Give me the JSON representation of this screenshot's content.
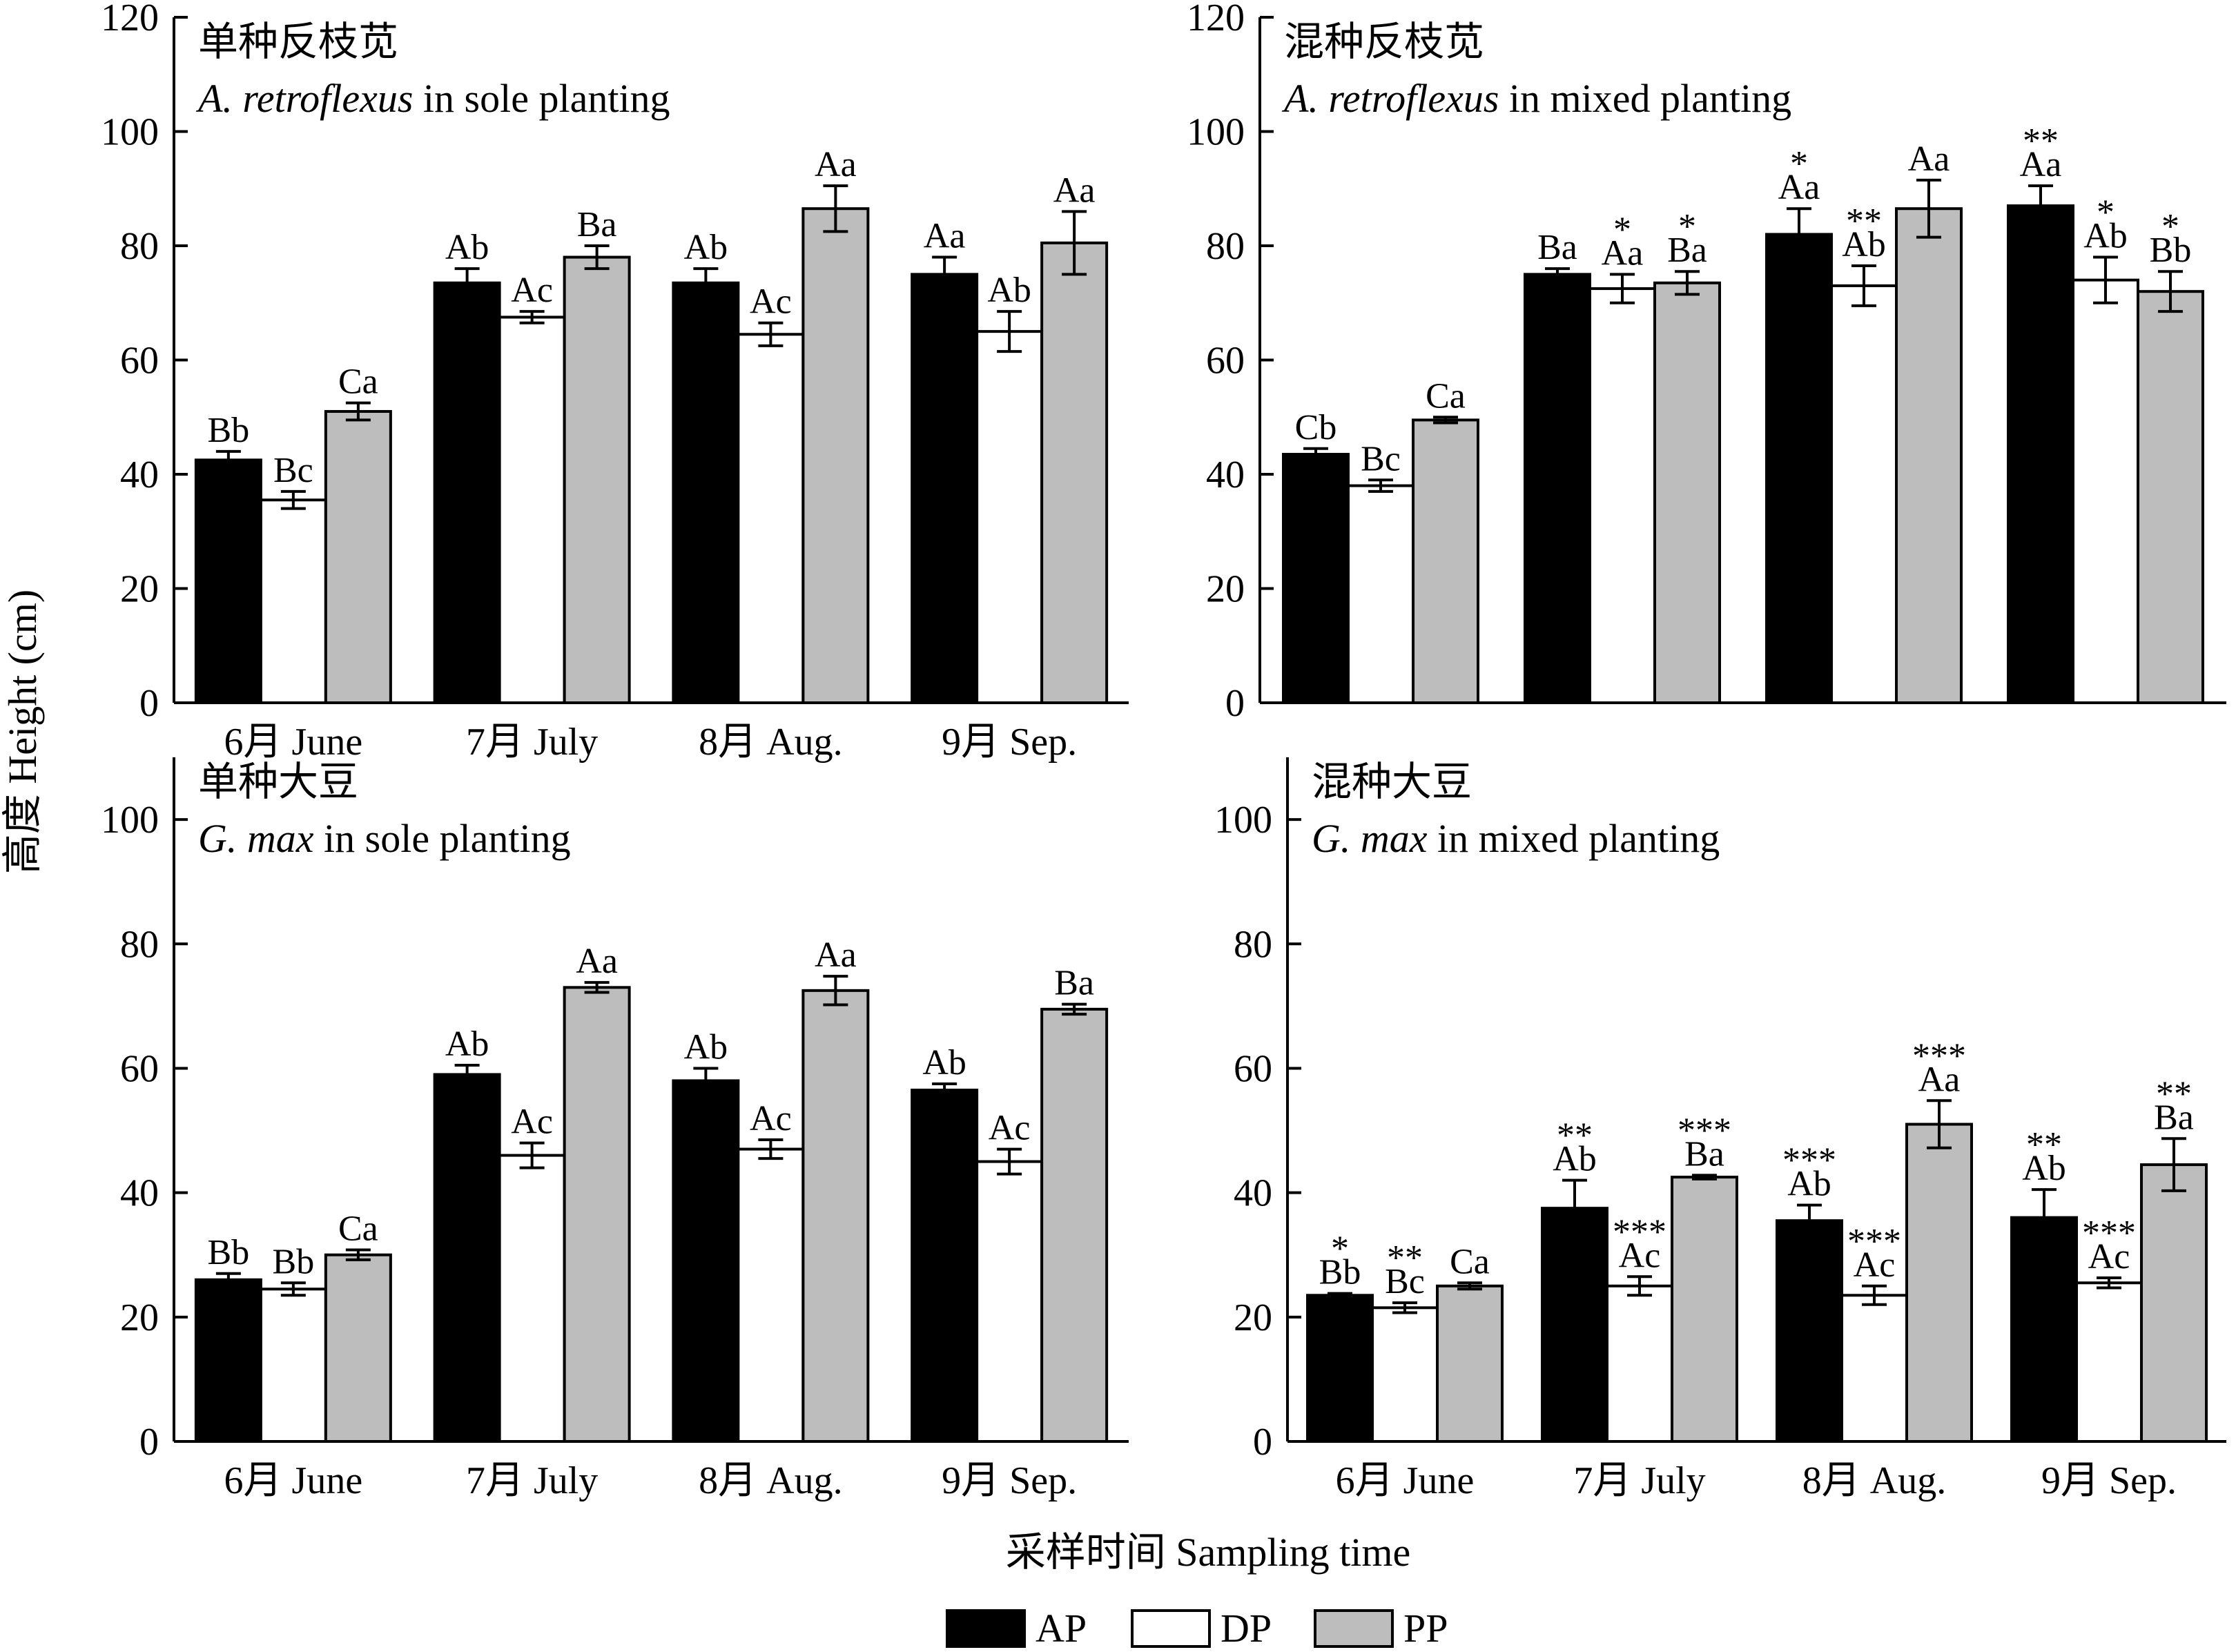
{
  "figure": {
    "ylabel": "高度 Height (cm)",
    "xlabel": "采样时间 Sampling time",
    "legend": {
      "position": "bottom-center",
      "items": [
        {
          "name": "AP",
          "color": "#000000"
        },
        {
          "name": "DP",
          "color": "#ffffff"
        },
        {
          "name": "PP",
          "color": "#bdbdbd"
        }
      ]
    }
  },
  "chart_data": [
    {
      "type": "bar",
      "title_cn": "单种反枝苋",
      "title_en_italic": "A. retroflexus",
      "title_en_rest": " in sole planting",
      "categories": [
        "6月  June",
        "7月  July",
        "8月  Aug.",
        "9月  Sep."
      ],
      "ylim": [
        0,
        120
      ],
      "yticks": [
        "0",
        "20",
        "40",
        "60",
        "80",
        "100",
        "120"
      ],
      "series": [
        {
          "name": "AP",
          "values": [
            42.5,
            73.5,
            73.5,
            75.0
          ],
          "errors": [
            1.5,
            2.5,
            2.5,
            3.0
          ],
          "labels": [
            "Bb",
            "Ab",
            "Ab",
            "Aa"
          ],
          "stars": [
            "",
            "",
            "",
            ""
          ]
        },
        {
          "name": "DP",
          "values": [
            35.5,
            67.5,
            64.5,
            65.0
          ],
          "errors": [
            1.5,
            1.0,
            2.0,
            3.5
          ],
          "labels": [
            "Bc",
            "Ac",
            "Ac",
            "Ab"
          ],
          "stars": [
            "",
            "",
            "",
            ""
          ]
        },
        {
          "name": "PP",
          "values": [
            51.0,
            78.0,
            86.5,
            80.5
          ],
          "errors": [
            1.5,
            2.0,
            4.0,
            5.5
          ],
          "labels": [
            "Ca",
            "Ba",
            "Aa",
            "Aa"
          ],
          "stars": [
            "",
            "",
            "",
            ""
          ]
        }
      ]
    },
    {
      "type": "bar",
      "title_cn": "混种反枝苋",
      "title_en_italic": "A. retroflexus",
      "title_en_rest": " in mixed planting",
      "categories": [
        "",
        "",
        "",
        ""
      ],
      "ylim": [
        0,
        120
      ],
      "yticks": [
        "0",
        "20",
        "40",
        "60",
        "80",
        "100",
        "120"
      ],
      "series": [
        {
          "name": "AP",
          "values": [
            43.5,
            75.0,
            82.0,
            87.0
          ],
          "errors": [
            1.0,
            1.0,
            4.5,
            3.5
          ],
          "labels": [
            "Cb",
            "Ba",
            "Aa",
            "Aa"
          ],
          "stars": [
            "",
            "",
            "*",
            "**"
          ]
        },
        {
          "name": "DP",
          "values": [
            38.0,
            72.5,
            73.0,
            74.0
          ],
          "errors": [
            1.0,
            2.5,
            3.5,
            4.0
          ],
          "labels": [
            "Bc",
            "Aa",
            "Ab",
            "Ab"
          ],
          "stars": [
            "",
            "*",
            "**",
            "*"
          ]
        },
        {
          "name": "PP",
          "values": [
            49.5,
            73.5,
            86.5,
            72.0
          ],
          "errors": [
            0.5,
            2.0,
            5.0,
            3.5
          ],
          "labels": [
            "Ca",
            "Ba",
            "Aa",
            "Bb"
          ],
          "stars": [
            "",
            "*",
            "",
            "*"
          ]
        }
      ]
    },
    {
      "type": "bar",
      "title_cn": "单种大豆",
      "title_en_italic": "G. max",
      "title_en_rest": " in sole planting",
      "categories": [
        "6月  June",
        "7月  July",
        "8月  Aug.",
        "9月  Sep."
      ],
      "ylim": [
        0,
        110
      ],
      "yticks": [
        "0",
        "20",
        "40",
        "60",
        "80",
        "100"
      ],
      "series": [
        {
          "name": "AP",
          "values": [
            26.0,
            59.0,
            58.0,
            56.5
          ],
          "errors": [
            1.0,
            1.5,
            2.0,
            1.0
          ],
          "labels": [
            "Bb",
            "Ab",
            "Ab",
            "Ab"
          ],
          "stars": [
            "",
            "",
            "",
            ""
          ]
        },
        {
          "name": "DP",
          "values": [
            24.5,
            46.0,
            47.0,
            45.0
          ],
          "errors": [
            1.0,
            2.0,
            1.5,
            2.0
          ],
          "labels": [
            "Bb",
            "Ac",
            "Ac",
            "Ac"
          ],
          "stars": [
            "",
            "",
            "",
            ""
          ]
        },
        {
          "name": "PP",
          "values": [
            30.0,
            73.0,
            72.5,
            69.5
          ],
          "errors": [
            0.8,
            0.8,
            2.3,
            0.8
          ],
          "labels": [
            "Ca",
            "Aa",
            "Aa",
            "Ba"
          ],
          "stars": [
            "",
            "",
            "",
            ""
          ]
        }
      ]
    },
    {
      "type": "bar",
      "title_cn": "混种大豆",
      "title_en_italic": "G. max",
      "title_en_rest": " in mixed planting",
      "categories": [
        "6月  June",
        "7月  July",
        "8月  Aug.",
        "9月  Sep."
      ],
      "ylim": [
        0,
        110
      ],
      "yticks": [
        "0",
        "20",
        "40",
        "60",
        "80",
        "100"
      ],
      "series": [
        {
          "name": "AP",
          "values": [
            23.5,
            37.5,
            35.5,
            36.0
          ],
          "errors": [
            0.3,
            4.5,
            2.5,
            4.5
          ],
          "labels": [
            "Bb",
            "Ab",
            "Ab",
            "Ab"
          ],
          "stars": [
            "*",
            "**",
            "***",
            "**"
          ]
        },
        {
          "name": "DP",
          "values": [
            21.5,
            25.0,
            23.5,
            25.5
          ],
          "errors": [
            0.8,
            1.5,
            1.5,
            0.8
          ],
          "labels": [
            "Bc",
            "Ac",
            "Ac",
            "Ac"
          ],
          "stars": [
            "**",
            "***",
            "***",
            "***"
          ]
        },
        {
          "name": "PP",
          "values": [
            25.0,
            42.5,
            51.0,
            44.5
          ],
          "errors": [
            0.5,
            0.3,
            3.8,
            4.2
          ],
          "labels": [
            "Ca",
            "Ba",
            "Aa",
            "Ba"
          ],
          "stars": [
            "",
            "***",
            "***",
            "**"
          ]
        }
      ]
    }
  ]
}
